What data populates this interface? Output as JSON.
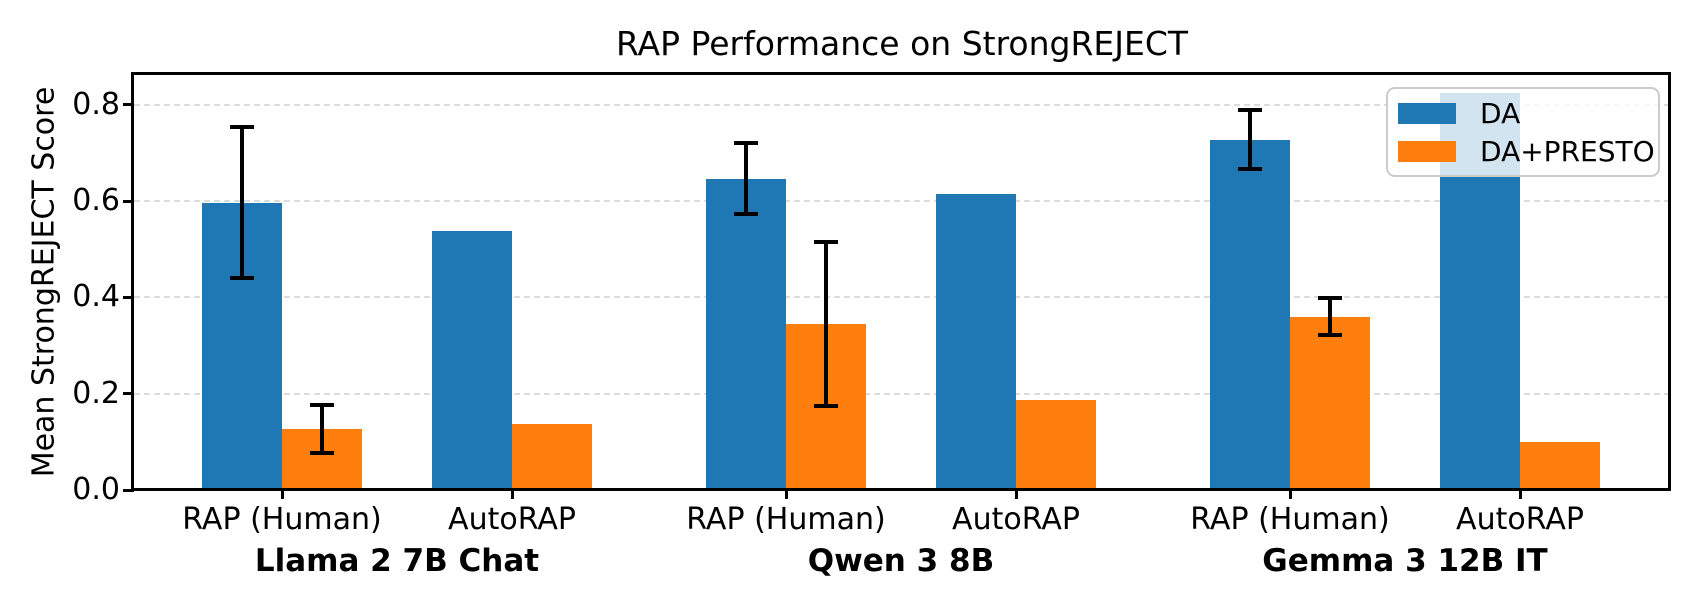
{
  "chart_data": {
    "type": "bar",
    "title": "RAP Performance on StrongREJECT",
    "ylabel": "Mean StrongREJECT Score",
    "xlabel": "",
    "ylim": [
      0,
      0.862
    ],
    "ytick_values": [
      0,
      0.2,
      0.4,
      0.6,
      0.8
    ],
    "ytick_labels": [
      "0.0",
      "0.2",
      "0.4",
      "0.6",
      "0.8"
    ],
    "grid": "horizontal-dashed",
    "legend_position": "upper-right",
    "series": [
      {
        "name": "DA",
        "color": "#1f77b4"
      },
      {
        "name": "DA+PRESTO",
        "color": "#ff7f0e"
      }
    ],
    "error_bar_color": "#000000",
    "groups": [
      {
        "model": "Llama 2 7B Chat",
        "conditions": [
          {
            "label": "RAP (Human)",
            "values": [
              0.597,
              0.127
            ],
            "errors": [
              0.157,
              0.05
            ]
          },
          {
            "label": "AutoRAP",
            "values": [
              0.538,
              0.137
            ],
            "errors": [
              null,
              null
            ]
          }
        ]
      },
      {
        "model": "Qwen 3 8B",
        "conditions": [
          {
            "label": "RAP (Human)",
            "values": [
              0.647,
              0.345
            ],
            "errors": [
              0.074,
              0.17
            ]
          },
          {
            "label": "AutoRAP",
            "values": [
              0.615,
              0.187
            ],
            "errors": [
              null,
              null
            ]
          }
        ]
      },
      {
        "model": "Gemma 3 12B IT",
        "conditions": [
          {
            "label": "RAP (Human)",
            "values": [
              0.728,
              0.36
            ],
            "errors": [
              0.062,
              0.039
            ]
          },
          {
            "label": "AutoRAP",
            "values": [
              0.825,
              0.1
            ],
            "errors": [
              null,
              null
            ]
          }
        ]
      }
    ]
  }
}
